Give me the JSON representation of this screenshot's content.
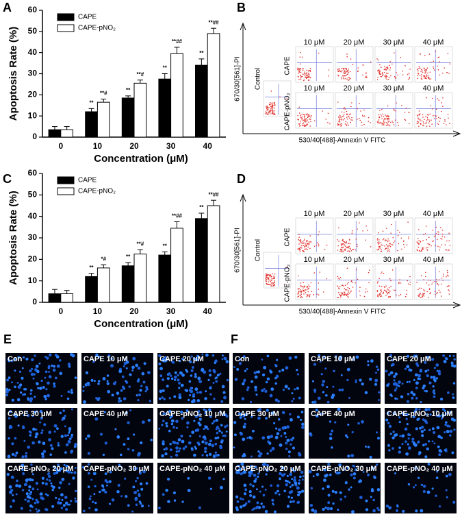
{
  "chart_data": [
    {
      "type": "bar",
      "panel": "A",
      "y_label": "Apoptosis Rate (%)",
      "x_label": "Concentration (μM)",
      "categories": [
        "0",
        "10",
        "20",
        "30",
        "40"
      ],
      "series": [
        {
          "name": "CAPE",
          "color": "#000000",
          "values": [
            3.5,
            12,
            18.5,
            27.5,
            34
          ],
          "errors": [
            1.5,
            1.5,
            1,
            2.5,
            3
          ],
          "annotations": [
            null,
            "**",
            "**",
            "**",
            "**"
          ]
        },
        {
          "name": "CAPE-pNO₂",
          "color": "#ffffff",
          "values": [
            3.5,
            16.5,
            25.5,
            39.5,
            49
          ],
          "errors": [
            1.5,
            1.5,
            1.5,
            3,
            2.5
          ],
          "annotations": [
            null,
            "**#",
            "**#",
            "**##",
            "**##"
          ]
        }
      ],
      "ylim": [
        0,
        60
      ],
      "yticks": [
        0,
        10,
        20,
        30,
        40,
        50,
        60
      ],
      "legend": "upper left"
    },
    {
      "type": "bar",
      "panel": "C",
      "y_label": "Apoptosis Rate (%)",
      "x_label": "Concentration (μM)",
      "categories": [
        "0",
        "10",
        "20",
        "30",
        "40"
      ],
      "series": [
        {
          "name": "CAPE",
          "color": "#000000",
          "values": [
            4,
            12,
            17,
            22,
            39
          ],
          "errors": [
            2,
            1.5,
            1.5,
            1.5,
            2.5
          ],
          "annotations": [
            null,
            "**",
            "**",
            "**",
            "**"
          ]
        },
        {
          "name": "CAPE-pNO₂",
          "color": "#ffffff",
          "values": [
            4,
            16,
            22.5,
            34.5,
            45
          ],
          "errors": [
            1.5,
            1.5,
            2,
            3,
            2.5
          ],
          "annotations": [
            null,
            "*#",
            "**#",
            "**##",
            "**##"
          ]
        }
      ],
      "ylim": [
        0,
        60
      ],
      "yticks": [
        0,
        10,
        20,
        30,
        40,
        50,
        60
      ],
      "legend": "upper left"
    }
  ],
  "flow_panels": [
    {
      "panel": "B",
      "y_label": "670/30[561]-PI",
      "x_label": "530/40[488]-Annexin V FITC",
      "control": "Control",
      "rows": [
        "CAPE",
        "CAPE-pNO₂"
      ],
      "columns": [
        "10 μM",
        "20 μM",
        "30 μM",
        "40 μM"
      ]
    },
    {
      "panel": "D",
      "y_label": "670/30[561]-PI",
      "x_label": "530/40[488]-Annexin V FITC",
      "control": "Control",
      "rows": [
        "CAPE",
        "CAPE-pNO₂"
      ],
      "columns": [
        "10 μM",
        "20 μM",
        "30 μM",
        "40 μM"
      ]
    }
  ],
  "image_panels": [
    {
      "panel": "E",
      "tiles": [
        "Con",
        "CAPE 10 μM",
        "CAPE 20 μM",
        "CAPE 30 μM",
        "CAPE 40 μM",
        "CAPE-pNO₂ 10 μM",
        "CAPE-pNO₂ 20 μM",
        "CAPE-pNO₂ 30 μM",
        "CAPE-pNO₂ 40 μM"
      ]
    },
    {
      "panel": "F",
      "tiles": [
        "Con",
        "CAPE 10 μM",
        "CAPE 20 μM",
        "CAPE 30 μM",
        "CAPE 40 μM",
        "CAPE-pNO₂ 10 μM",
        "CAPE-pNO₂ 20 μM",
        "CAPE-pNO₂ 30 μM",
        "CAPE-pNO₂ 40 μM"
      ]
    }
  ]
}
